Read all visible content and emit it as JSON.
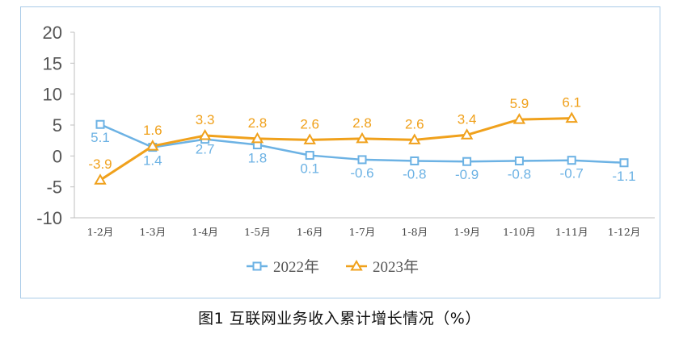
{
  "caption": "图1  互联网业务收入累计增长情况（%）",
  "chart_data": {
    "type": "line",
    "categories": [
      "1-2月",
      "1-3月",
      "1-4月",
      "1-5月",
      "1-6月",
      "1-7月",
      "1-8月",
      "1-9月",
      "1-10月",
      "1-11月",
      "1-12月"
    ],
    "ylim": [
      -10,
      20
    ],
    "yticks": [
      20,
      15,
      10,
      5,
      0,
      -5,
      -10
    ],
    "legend_position": "bottom-center",
    "grid": false,
    "series": [
      {
        "name": "2022年",
        "color": "#6cb2e4",
        "marker": "square",
        "values": [
          5.1,
          1.4,
          2.7,
          1.8,
          0.1,
          -0.6,
          -0.8,
          -0.9,
          -0.8,
          -0.7,
          -1.1
        ],
        "labels": [
          "5.1",
          "1.4",
          "2.7",
          "1.8",
          "0.1",
          "-0.6",
          "-0.8",
          "-0.9",
          "-0.8",
          "-0.7",
          "-1.1"
        ]
      },
      {
        "name": "2023年",
        "color": "#f0a11c",
        "marker": "triangle",
        "values": [
          -3.9,
          1.6,
          3.3,
          2.8,
          2.6,
          2.8,
          2.6,
          3.4,
          5.9,
          6.1,
          null
        ],
        "labels": [
          "-3.9",
          "1.6",
          "3.3",
          "2.8",
          "2.6",
          "2.8",
          "2.6",
          "3.4",
          "5.9",
          "6.1",
          null
        ]
      }
    ]
  }
}
